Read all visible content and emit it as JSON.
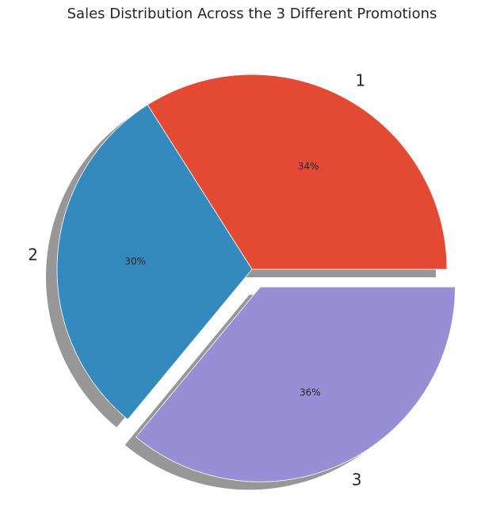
{
  "chart_data": {
    "type": "pie",
    "title": "Sales Distribution Across the 3 Different Promotions",
    "categories": [
      "1",
      "2",
      "3"
    ],
    "values": [
      34,
      30,
      36
    ],
    "value_labels": [
      "34%",
      "30%",
      "36%"
    ],
    "colors": [
      "#E24A33",
      "#348ABD",
      "#988ED5"
    ],
    "explode": [
      0,
      0,
      0.1
    ],
    "shadow": true,
    "start_angle_deg": 0,
    "direction": "counterclockwise"
  }
}
